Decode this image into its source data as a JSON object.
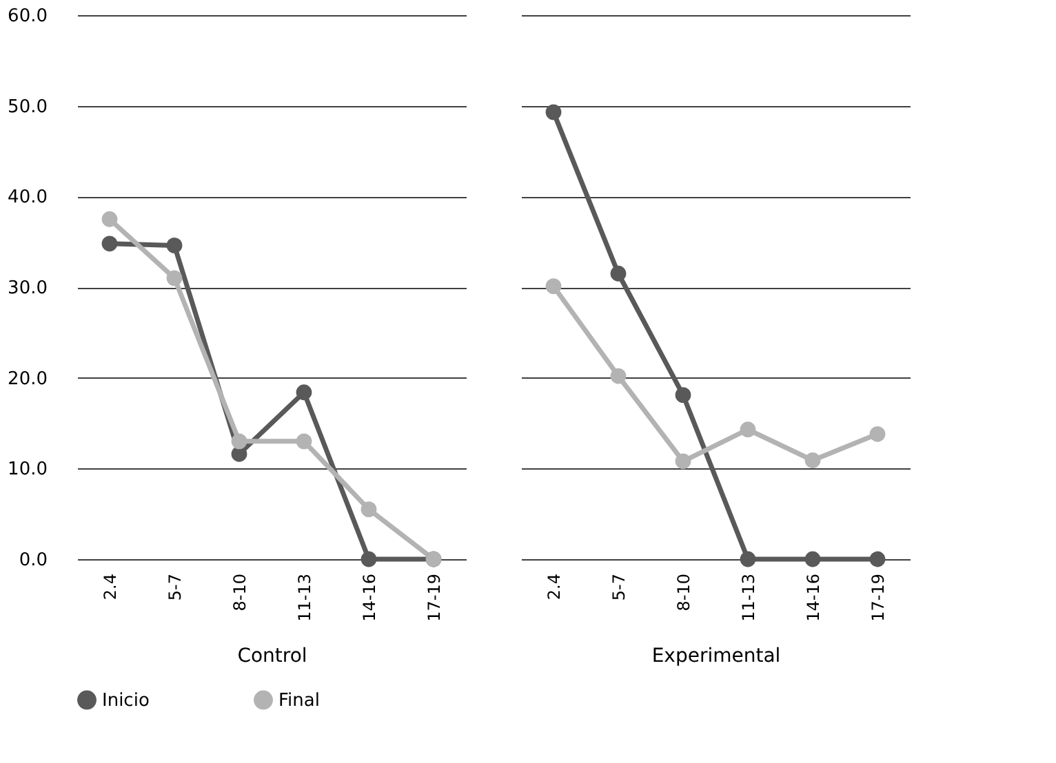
{
  "chart_data": [
    {
      "type": "line",
      "xlabel": "Control",
      "categories": [
        "2.4",
        "5-7",
        "8-10",
        "11-13",
        "14-16",
        "17-19"
      ],
      "ylim": [
        0,
        60
      ],
      "yticks": [
        {
          "value": 0,
          "label": "0.0"
        },
        {
          "value": 10,
          "label": "10.0"
        },
        {
          "value": 20,
          "label": "20.0"
        },
        {
          "value": 30,
          "label": "30.0"
        },
        {
          "value": 40,
          "label": "40.0"
        },
        {
          "value": 50,
          "label": "50.0"
        },
        {
          "value": 60,
          "label": "60.0"
        }
      ],
      "grid": "y",
      "marker": "circle",
      "line_style": "solid",
      "legend": "bottom",
      "series": [
        {
          "name": "Inicio",
          "color": "#595959",
          "values": [
            34.8,
            34.6,
            11.6,
            18.4,
            0,
            0
          ]
        },
        {
          "name": "Final",
          "color": "#b3b3b3",
          "values": [
            37.5,
            31.0,
            13.0,
            13.0,
            5.5,
            0
          ]
        }
      ]
    },
    {
      "type": "line",
      "xlabel": "Experimental",
      "categories": [
        "2.4",
        "5-7",
        "8-10",
        "11-13",
        "14-16",
        "17-19"
      ],
      "ylim": [
        0,
        60
      ],
      "yticks": [
        {
          "value": 0,
          "label": null
        },
        {
          "value": 10,
          "label": null
        },
        {
          "value": 20,
          "label": null
        },
        {
          "value": 30,
          "label": null
        },
        {
          "value": 40,
          "label": null
        },
        {
          "value": 50,
          "label": null
        },
        {
          "value": 60,
          "label": null
        }
      ],
      "grid": "y",
      "marker": "circle",
      "line_style": "solid",
      "legend": "bottom",
      "tick_labels": "x",
      "series": [
        {
          "name": "Inicio",
          "color": "#595959",
          "values": [
            49.3,
            31.5,
            18.1,
            0,
            0,
            0
          ]
        },
        {
          "name": "Final",
          "color": "#b3b3b3",
          "values": [
            30.1,
            20.2,
            10.8,
            14.3,
            10.9,
            13.8
          ]
        }
      ]
    }
  ]
}
